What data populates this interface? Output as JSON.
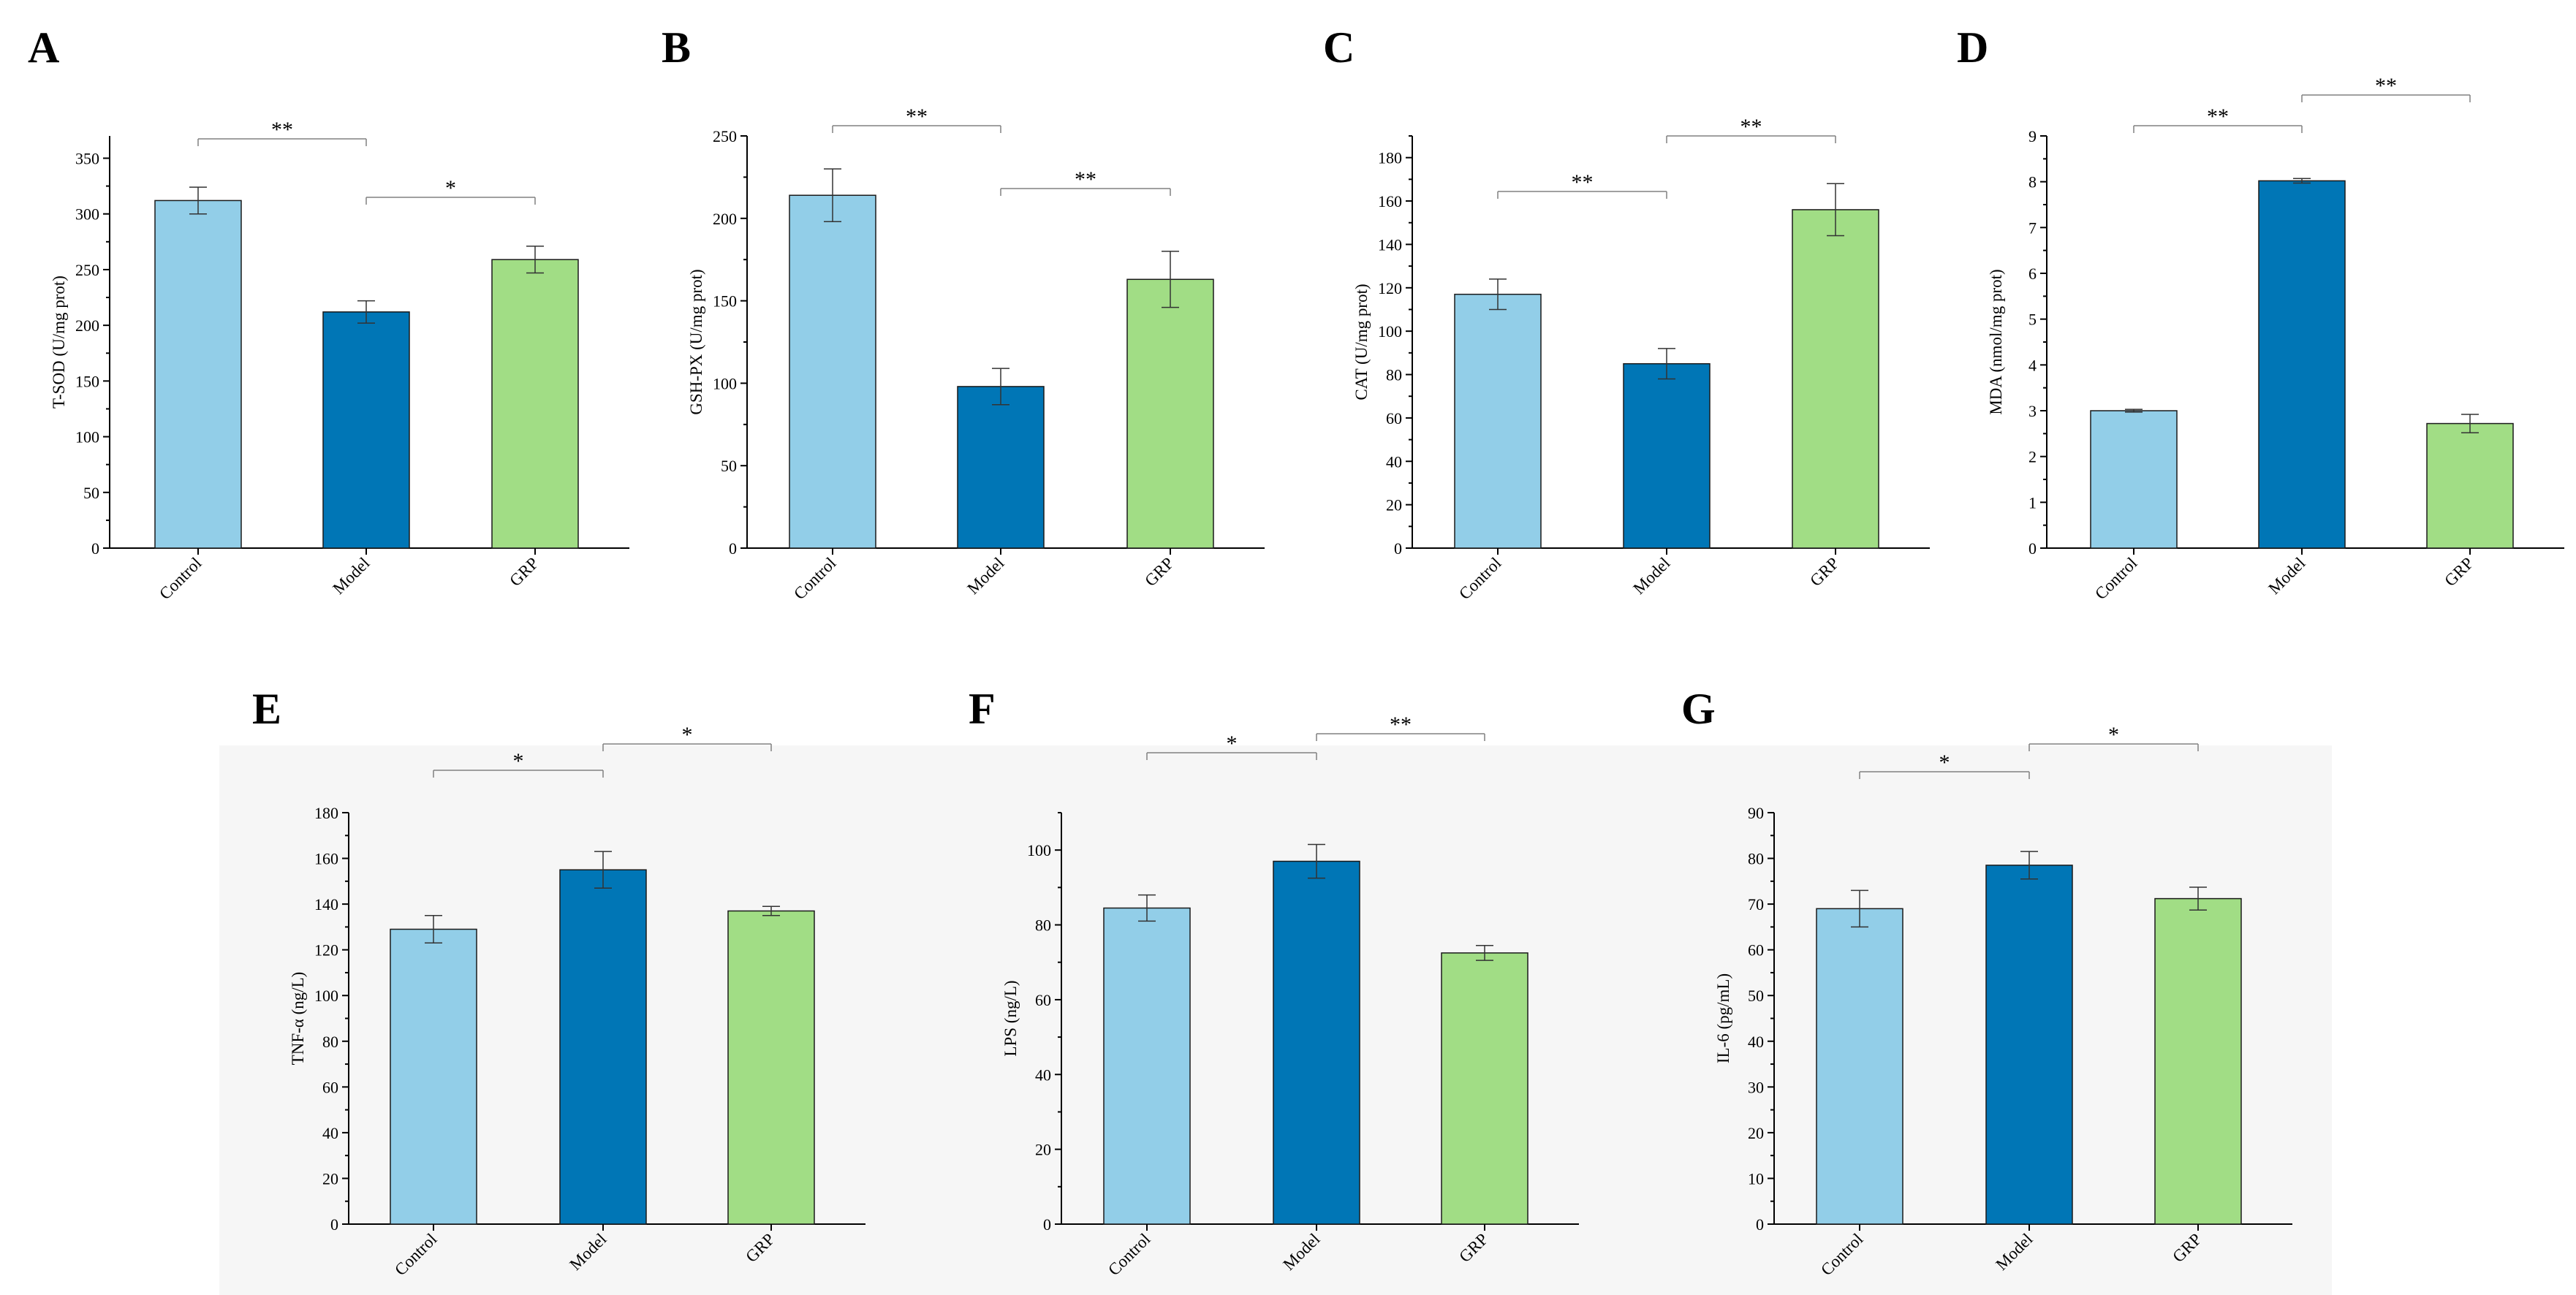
{
  "figure": {
    "groups": [
      "Control",
      "Model",
      "GRP"
    ]
  },
  "colors": {
    "control": "#92cee8",
    "model": "#0076b6",
    "grp": "#a1dd85",
    "axis": "#000000",
    "bracket": "#808080",
    "shading": "#f6f6f6"
  },
  "chart_data": [
    {
      "letter": "A",
      "type": "bar",
      "ylabel": "T-SOD (U/mg prot)",
      "ylim": [
        0,
        370
      ],
      "ticks": [
        0,
        50,
        100,
        150,
        200,
        250,
        300,
        350
      ],
      "categories": [
        "Control",
        "Model",
        "GRP"
      ],
      "values": [
        312,
        212,
        259
      ],
      "errors": [
        12,
        10,
        12
      ],
      "significance": [
        {
          "from": 0,
          "to": 1,
          "label": "**"
        },
        {
          "from": 1,
          "to": 2,
          "label": "*"
        }
      ]
    },
    {
      "letter": "B",
      "type": "bar",
      "ylabel": "GSH-PX (U/mg prot)",
      "ylim": [
        0,
        250
      ],
      "ticks": [
        0,
        50,
        100,
        150,
        200,
        250
      ],
      "categories": [
        "Control",
        "Model",
        "GRP"
      ],
      "values": [
        214,
        98,
        163
      ],
      "errors": [
        16,
        11,
        17
      ],
      "significance": [
        {
          "from": 0,
          "to": 1,
          "label": "**"
        },
        {
          "from": 1,
          "to": 2,
          "label": "**"
        }
      ]
    },
    {
      "letter": "C",
      "type": "bar",
      "ylabel": "CAT (U/mg prot)",
      "ylim": [
        0,
        190
      ],
      "ticks": [
        0,
        20,
        40,
        60,
        80,
        100,
        120,
        140,
        160,
        180
      ],
      "categories": [
        "Control",
        "Model",
        "GRP"
      ],
      "values": [
        117,
        85,
        156
      ],
      "errors": [
        7,
        7,
        12
      ],
      "significance": [
        {
          "from": 0,
          "to": 1,
          "label": "**"
        },
        {
          "from": 1,
          "to": 2,
          "label": "**"
        }
      ]
    },
    {
      "letter": "D",
      "type": "bar",
      "ylabel": "MDA (nmol/mg prot)",
      "ylim": [
        0,
        9
      ],
      "ticks": [
        0,
        1,
        2,
        3,
        4,
        5,
        6,
        7,
        8,
        9
      ],
      "categories": [
        "Control",
        "Model",
        "GRP"
      ],
      "values": [
        3.0,
        8.02,
        2.72
      ],
      "errors": [
        0.03,
        0.05,
        0.2
      ],
      "significance": [
        {
          "from": 0,
          "to": 1,
          "label": "**"
        },
        {
          "from": 1,
          "to": 2,
          "label": "**"
        }
      ]
    },
    {
      "letter": "E",
      "type": "bar",
      "ylabel": "TNF-α (ng/L)",
      "ylim": [
        0,
        180
      ],
      "ticks": [
        0,
        20,
        40,
        60,
        80,
        100,
        120,
        140,
        160,
        180
      ],
      "categories": [
        "Control",
        "Model",
        "GRP"
      ],
      "values": [
        129,
        155,
        137
      ],
      "errors": [
        6,
        8,
        2
      ],
      "significance": [
        {
          "from": 0,
          "to": 1,
          "label": "*"
        },
        {
          "from": 1,
          "to": 2,
          "label": "*"
        }
      ]
    },
    {
      "letter": "F",
      "type": "bar",
      "ylabel": "LPS (ng/L)",
      "ylim": [
        0,
        110
      ],
      "ticks": [
        0,
        20,
        40,
        60,
        80,
        100
      ],
      "categories": [
        "Control",
        "Model",
        "GRP"
      ],
      "values": [
        84.5,
        97,
        72.5
      ],
      "errors": [
        3.5,
        4.5,
        2
      ],
      "significance": [
        {
          "from": 0,
          "to": 1,
          "label": "*"
        },
        {
          "from": 1,
          "to": 2,
          "label": "**"
        }
      ]
    },
    {
      "letter": "G",
      "type": "bar",
      "ylabel": "IL-6 (pg/mL)",
      "ylim": [
        0,
        90
      ],
      "ticks": [
        0,
        10,
        20,
        30,
        40,
        50,
        60,
        70,
        80,
        90
      ],
      "categories": [
        "Control",
        "Model",
        "GRP"
      ],
      "values": [
        69,
        78.5,
        71.2
      ],
      "errors": [
        4,
        3,
        2.5
      ],
      "significance": [
        {
          "from": 0,
          "to": 1,
          "label": "*"
        },
        {
          "from": 1,
          "to": 2,
          "label": "*"
        }
      ]
    }
  ]
}
